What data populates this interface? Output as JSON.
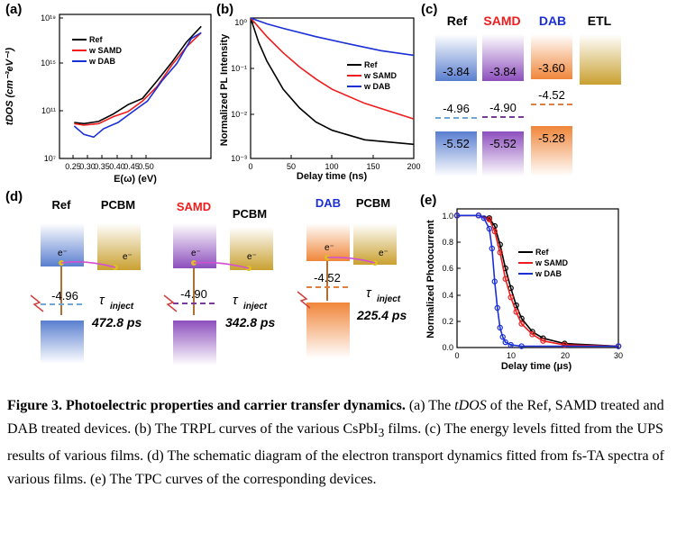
{
  "colors": {
    "ref": "#000000",
    "samd": "#ee1c1c",
    "dab": "#1a2fd8",
    "purple": "#8e4fb8",
    "orange": "#f08a3a",
    "gold": "#c9a33a",
    "blue": "#6e8fd6"
  },
  "panels": {
    "a": "(a)",
    "b": "(b)",
    "c": "(c)",
    "d": "(d)",
    "e": "(e)"
  },
  "panel_a": {
    "ylabel": "tDOS (cm⁻³eV⁻¹)",
    "xlabel": "E(ω) (eV)",
    "yticks": [
      "10¹⁹",
      "10¹⁵",
      "10¹¹",
      "10⁷"
    ],
    "xticks": [
      "0.25",
      "0.30",
      "0.35",
      "0.40",
      "0.45",
      "0.50"
    ],
    "legend": [
      "Ref",
      "w SAMD",
      "w DAB"
    ]
  },
  "panel_b": {
    "ylabel": "Normalized PL Intensity",
    "xlabel": "Delay time (ns)",
    "yticks": [
      "10⁰",
      "10⁻¹",
      "10⁻²",
      "10⁻³"
    ],
    "xticks": [
      "0",
      "50",
      "100",
      "150",
      "200"
    ],
    "legend": [
      "Ref",
      "w SAMD",
      "w DAB"
    ]
  },
  "panel_c": {
    "headers": [
      "Ref",
      "SAMD",
      "DAB",
      "ETL"
    ],
    "cbm": [
      "-3.84",
      "-3.84",
      "-3.60"
    ],
    "fermi": [
      "-4.96",
      "-4.90",
      "-4.52"
    ],
    "vbm": [
      "-5.52",
      "-5.52",
      "-5.28"
    ]
  },
  "panel_d": {
    "groups": [
      {
        "name": "Ref",
        "acceptor": "PCBM",
        "fermi": "-4.96",
        "tau": "τ",
        "tau_sub": "inject",
        "time": "472.8 ps"
      },
      {
        "name": "SAMD",
        "acceptor": "PCBM",
        "fermi": "-4.90",
        "tau": "τ",
        "tau_sub": "inject",
        "time": "342.8 ps"
      },
      {
        "name": "DAB",
        "acceptor": "PCBM",
        "fermi": "-4.52",
        "tau": "τ",
        "tau_sub": "inject",
        "time": "225.4 ps"
      }
    ],
    "electron": "e⁻"
  },
  "panel_e": {
    "ylabel": "Normalized Photocurrent",
    "xlabel": "Delay time (μs)",
    "yticks": [
      "1.0",
      "0.8",
      "0.6",
      "0.4",
      "0.2",
      "0.0"
    ],
    "xticks": [
      "0",
      "10",
      "20",
      "30"
    ],
    "legend": [
      "Ref",
      "w SAMD",
      "w DAB"
    ]
  },
  "caption": {
    "title": "Figure 3. Photoelectric properties and carrier transfer dynamics.",
    "p1": " (a) The ",
    "tdos": "tDOS",
    "p2": " of the Ref, SAMD treated and DAB treated devices. (b) The TRPL curves of the various CsPbI",
    "sub3": "3",
    "p3": " films. (c) The energy levels fitted from the UPS results of various films. (d) The schematic diagram of the electron transport dynamics fitted from fs-TA spectra of various films. (e) The TPC curves of the corresponding devices."
  },
  "chart_data": [
    {
      "type": "line",
      "title": "",
      "xlabel": "E(ω) (eV)",
      "ylabel": "tDOS (cm-3eV-1)",
      "yscale": "log",
      "xlim": [
        0.22,
        0.53
      ],
      "ylim": [
        10000000.0,
        1e+19
      ],
      "series": [
        {
          "name": "Ref",
          "x": [
            0.25,
            0.27,
            0.3,
            0.33,
            0.36,
            0.39,
            0.42,
            0.45,
            0.48,
            0.51
          ],
          "y": [
            10000000000.0,
            8000000000.0,
            12000000000.0,
            50000000000.0,
            300000000000.0,
            1000000000000.0,
            30000000000000.0,
            1000000000000000.0,
            5e+16,
            1e+18
          ]
        },
        {
          "name": "w SAMD",
          "x": [
            0.25,
            0.27,
            0.3,
            0.33,
            0.36,
            0.39,
            0.42,
            0.45,
            0.48,
            0.51
          ],
          "y": [
            8000000000.0,
            6000000000.0,
            8000000000.0,
            30000000000.0,
            80000000000.0,
            600000000000.0,
            10000000000000.0,
            600000000000000.0,
            2e+16,
            3e+17
          ]
        },
        {
          "name": "w DAB",
          "x": [
            0.25,
            0.27,
            0.29,
            0.31,
            0.34,
            0.37,
            0.4,
            0.43,
            0.46,
            0.49,
            0.51
          ],
          "y": [
            5000000000.0,
            1000000000.0,
            600000000.0,
            3000000000.0,
            10000000000.0,
            80000000000.0,
            600000000000.0,
            30000000000000.0,
            800000000000000.0,
            1e+17,
            3e+17
          ]
        }
      ]
    },
    {
      "type": "line",
      "title": "",
      "xlabel": "Delay time (ns)",
      "ylabel": "Normalized PL Intensity",
      "yscale": "log",
      "xlim": [
        0,
        200
      ],
      "ylim": [
        0.001,
        1
      ],
      "series": [
        {
          "name": "Ref",
          "x": [
            0,
            10,
            20,
            40,
            60,
            80,
            100,
            140,
            200
          ],
          "y": [
            1,
            0.3,
            0.12,
            0.03,
            0.012,
            0.006,
            0.004,
            0.0025,
            0.002
          ]
        },
        {
          "name": "w SAMD",
          "x": [
            0,
            20,
            40,
            60,
            80,
            100,
            140,
            200
          ],
          "y": [
            1,
            0.4,
            0.18,
            0.09,
            0.05,
            0.03,
            0.015,
            0.007
          ]
        },
        {
          "name": "w DAB",
          "x": [
            0,
            20,
            40,
            80,
            120,
            160,
            200
          ],
          "y": [
            1,
            0.75,
            0.6,
            0.4,
            0.28,
            0.2,
            0.16
          ]
        }
      ]
    },
    {
      "type": "line",
      "title": "",
      "xlabel": "Delay time (μs)",
      "ylabel": "Normalized Photocurrent",
      "xlim": [
        0,
        30
      ],
      "ylim": [
        0,
        1.05
      ],
      "series": [
        {
          "name": "Ref",
          "x": [
            0,
            4,
            6,
            7,
            8,
            9,
            10,
            11,
            12,
            14,
            16,
            20,
            30
          ],
          "y": [
            1,
            1,
            0.98,
            0.92,
            0.78,
            0.6,
            0.45,
            0.32,
            0.22,
            0.12,
            0.07,
            0.03,
            0.01
          ]
        },
        {
          "name": "w SAMD",
          "x": [
            0,
            4,
            6,
            7,
            8,
            9,
            10,
            11,
            12,
            14,
            16,
            20,
            30
          ],
          "y": [
            1,
            1,
            0.97,
            0.88,
            0.72,
            0.52,
            0.38,
            0.27,
            0.18,
            0.1,
            0.05,
            0.02,
            0.01
          ]
        },
        {
          "name": "w DAB",
          "x": [
            0,
            4,
            5,
            6,
            6.5,
            7,
            7.5,
            8,
            8.5,
            9,
            10,
            12,
            30
          ],
          "y": [
            1,
            1,
            0.98,
            0.9,
            0.75,
            0.5,
            0.3,
            0.15,
            0.08,
            0.04,
            0.02,
            0.01,
            0.01
          ]
        }
      ]
    }
  ]
}
